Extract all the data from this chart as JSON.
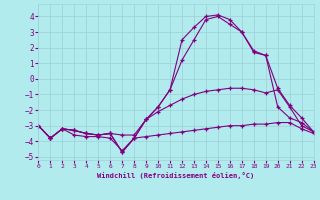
{
  "xlabel": "Windchill (Refroidissement éolien,°C)",
  "background_color": "#b2ebee",
  "grid_color": "#9fd4d8",
  "line_color": "#800080",
  "x_ticks": [
    0,
    1,
    2,
    3,
    4,
    5,
    6,
    7,
    8,
    9,
    10,
    11,
    12,
    13,
    14,
    15,
    16,
    17,
    18,
    19,
    20,
    21,
    22,
    23
  ],
  "y_ticks": [
    -5,
    -4,
    -3,
    -2,
    -1,
    0,
    1,
    2,
    3,
    4
  ],
  "xlim": [
    0,
    23
  ],
  "ylim": [
    -5.2,
    4.8
  ],
  "line1_x": [
    0,
    1,
    2,
    3,
    4,
    5,
    6,
    7,
    8,
    9,
    10,
    11,
    12,
    13,
    14,
    15,
    16,
    17,
    18,
    19,
    20,
    21,
    22,
    23
  ],
  "line1_y": [
    -3.0,
    -3.8,
    -3.2,
    -3.6,
    -3.7,
    -3.7,
    -3.8,
    -4.6,
    -3.8,
    -3.7,
    -3.6,
    -3.5,
    -3.4,
    -3.3,
    -3.2,
    -3.1,
    -3.0,
    -3.0,
    -2.9,
    -2.9,
    -2.8,
    -2.8,
    -3.2,
    -3.5
  ],
  "line2_x": [
    0,
    1,
    2,
    3,
    4,
    5,
    6,
    7,
    8,
    9,
    10,
    11,
    12,
    13,
    14,
    15,
    16,
    17,
    18,
    19,
    20,
    21,
    22,
    23
  ],
  "line2_y": [
    -3.0,
    -3.8,
    -3.2,
    -3.3,
    -3.5,
    -3.6,
    -3.5,
    -3.6,
    -3.6,
    -2.6,
    -2.1,
    -1.7,
    -1.3,
    -1.0,
    -0.8,
    -0.7,
    -0.6,
    -0.6,
    -0.7,
    -0.9,
    -0.7,
    -1.8,
    -3.0,
    -3.4
  ],
  "line3_x": [
    0,
    1,
    2,
    3,
    4,
    5,
    6,
    7,
    8,
    9,
    10,
    11,
    12,
    13,
    14,
    15,
    16,
    17,
    18,
    19,
    20,
    21,
    22,
    23
  ],
  "line3_y": [
    -3.0,
    -3.8,
    -3.2,
    -3.3,
    -3.5,
    -3.6,
    -3.5,
    -4.7,
    -3.8,
    -2.6,
    -1.8,
    -0.7,
    1.2,
    2.5,
    3.8,
    4.0,
    3.5,
    3.0,
    1.8,
    1.5,
    -0.6,
    -1.7,
    -2.5,
    -3.4
  ],
  "line4_x": [
    0,
    1,
    2,
    3,
    4,
    5,
    6,
    7,
    8,
    9,
    10,
    11,
    12,
    13,
    14,
    15,
    16,
    17,
    18,
    19,
    20,
    21,
    22,
    23
  ],
  "line4_y": [
    -3.0,
    -3.8,
    -3.2,
    -3.3,
    -3.5,
    -3.6,
    -3.5,
    -4.7,
    -3.8,
    -2.6,
    -1.8,
    -0.7,
    2.5,
    3.3,
    4.0,
    4.1,
    3.8,
    3.0,
    1.7,
    1.5,
    -1.8,
    -2.5,
    -2.8,
    -3.4
  ]
}
